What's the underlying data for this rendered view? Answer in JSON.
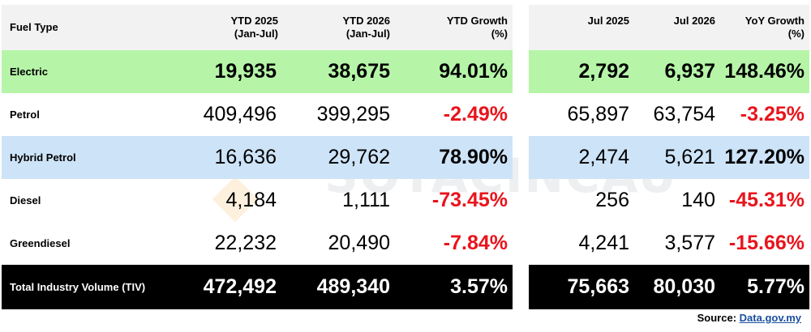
{
  "headers_left": {
    "fuel_type": "Fuel Type",
    "ytd_2025": "YTD 2025",
    "ytd_2025_sub": "(Jan-Jul)",
    "ytd_2026": "YTD 2026",
    "ytd_2026_sub": "(Jan-Jul)",
    "ytd_growth": "YTD Growth",
    "ytd_growth_sub": "(%)"
  },
  "headers_right": {
    "jul_2025": "Jul 2025",
    "jul_2026": "Jul 2026",
    "yoy_growth": "YoY Growth",
    "yoy_growth_sub": "(%)"
  },
  "rows": [
    {
      "label": "Electric",
      "ytd_2025": "19,935",
      "ytd_2026": "38,675",
      "ytd_growth": "94.01%",
      "jul_2025": "2,792",
      "jul_2026": "6,937",
      "yoy_growth": "148.46%"
    },
    {
      "label": "Petrol",
      "ytd_2025": "409,496",
      "ytd_2026": "399,295",
      "ytd_growth": "-2.49%",
      "jul_2025": "65,897",
      "jul_2026": "63,754",
      "yoy_growth": "-3.25%"
    },
    {
      "label": "Hybrid Petrol",
      "ytd_2025": "16,636",
      "ytd_2026": "29,762",
      "ytd_growth": "78.90%",
      "jul_2025": "2,474",
      "jul_2026": "5,621",
      "yoy_growth": "127.20%"
    },
    {
      "label": "Diesel",
      "ytd_2025": "4,184",
      "ytd_2026": "1,111",
      "ytd_growth": "-73.45%",
      "jul_2025": "256",
      "jul_2026": "140",
      "yoy_growth": "-45.31%"
    },
    {
      "label": "Greendiesel",
      "ytd_2025": "22,232",
      "ytd_2026": "20,490",
      "ytd_growth": "-7.84%",
      "jul_2025": "4,241",
      "jul_2026": "3,577",
      "yoy_growth": "-15.66%"
    },
    {
      "label": "Total Industry Volume (TIV)",
      "ytd_2025": "472,492",
      "ytd_2026": "489,340",
      "ytd_growth": "3.57%",
      "jul_2025": "75,663",
      "jul_2026": "80,030",
      "yoy_growth": "5.77%"
    }
  ],
  "source": {
    "prefix": "Source:",
    "link": "Data.gov.my"
  },
  "watermark": "SOYACINCAU",
  "colors": {
    "electric_row": "#b6f5a8",
    "hybrid_row": "#cde3f7",
    "total_row": "#000000",
    "header_bg": "#f2f2f2",
    "negative": "#e8141c",
    "link": "#1a4fa0"
  }
}
